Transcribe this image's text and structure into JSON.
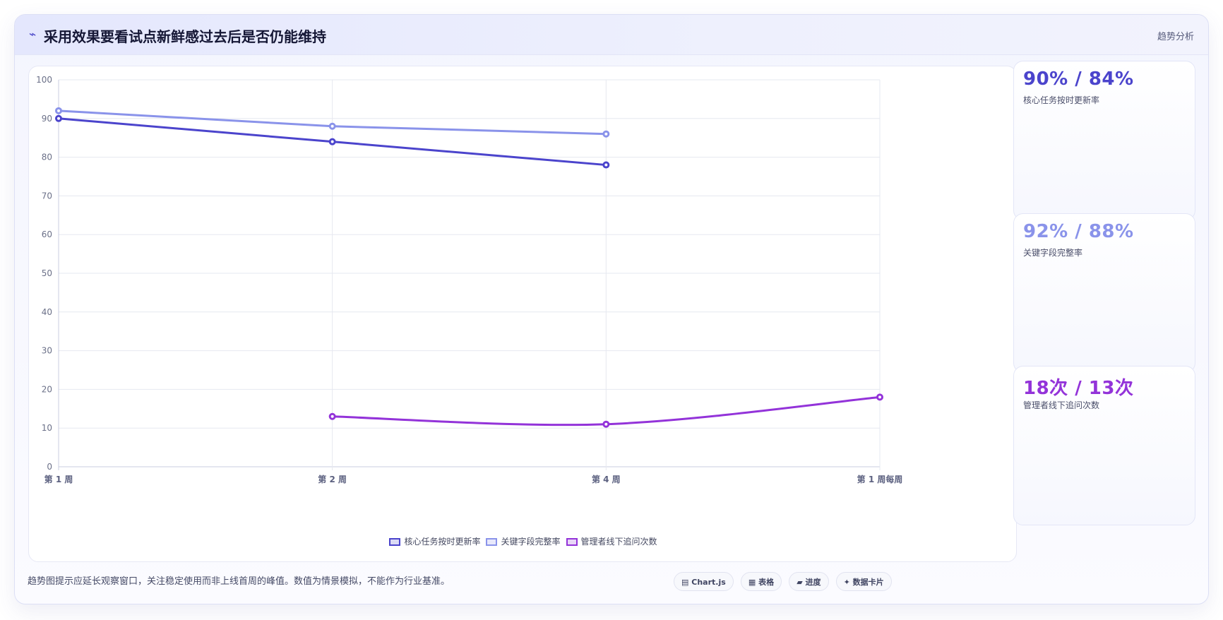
{
  "header": {
    "icon": "trend-line-icon",
    "title": "采用效果要看试点新鲜感过去后是否仍能维持",
    "tag": "趋势分析"
  },
  "chart_data": {
    "type": "line",
    "categories": [
      "第 1 周",
      "第 2 周",
      "第 4 周",
      "第 1 周每周"
    ],
    "ylim": [
      0,
      100
    ],
    "yticks": [
      0,
      10,
      20,
      30,
      40,
      50,
      60,
      70,
      80,
      90,
      100
    ],
    "grid": true,
    "legend_position": "bottom",
    "series": [
      {
        "name": "核心任务按时更新率",
        "color": "#4b44cc",
        "values": [
          90,
          84,
          78,
          null
        ],
        "smooth": false
      },
      {
        "name": "关键字段完整率",
        "color": "#8a93ea",
        "values": [
          92,
          88,
          86,
          null
        ],
        "smooth": false
      },
      {
        "name": "管理者线下追问次数",
        "color": "#9333d9",
        "values": [
          null,
          13,
          11,
          18
        ],
        "smooth": true
      }
    ]
  },
  "kpis": [
    {
      "value": "90% / 84%",
      "label": "核心任务按时更新率",
      "color": "#4b44cc"
    },
    {
      "value": "92% / 88%",
      "label": "关键字段完整率",
      "color": "#8a93ea"
    },
    {
      "value": "18次 / 13次",
      "label": "管理者线下追问次数",
      "color": "#9333d9"
    }
  ],
  "footnote": "趋势图提示应延长观察窗口，关注稳定使用而非上线首周的峰值。数值为情景模拟，不能作为行业基准。",
  "chips": [
    {
      "icon": "chart-icon",
      "glyph": "▤",
      "label": "Chart.js"
    },
    {
      "icon": "table-icon",
      "glyph": "▦",
      "label": "表格"
    },
    {
      "icon": "progress-icon",
      "glyph": "▰",
      "label": "进度"
    },
    {
      "icon": "sparkle-icon",
      "glyph": "✦",
      "label": "数据卡片"
    }
  ]
}
